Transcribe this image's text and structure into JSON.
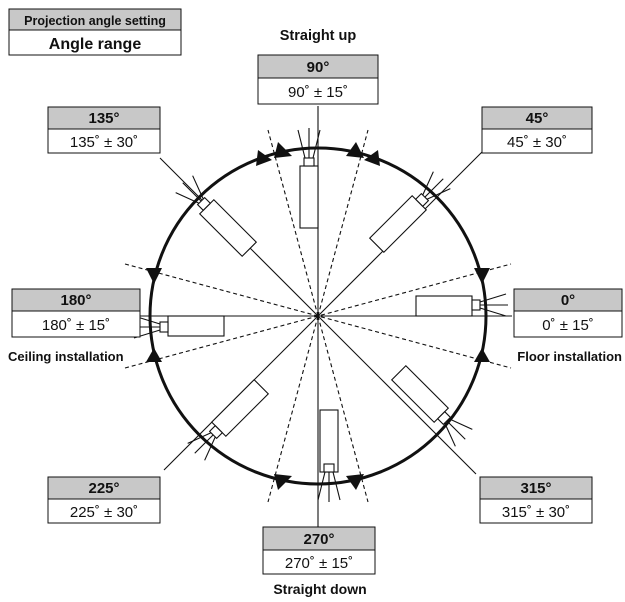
{
  "legend": {
    "heading": "Projection angle setting",
    "subheading": "Angle range"
  },
  "directions": {
    "up": "Straight up",
    "down": "Straight down",
    "ceiling": "Ceiling installation",
    "floor": "Floor installation"
  },
  "angles": [
    {
      "key": "a90",
      "angle": "90°",
      "range": "90˚ ± 15˚"
    },
    {
      "key": "a45",
      "angle": "45°",
      "range": "45˚ ± 30˚"
    },
    {
      "key": "a135",
      "angle": "135°",
      "range": "135˚ ± 30˚"
    },
    {
      "key": "a180",
      "angle": "180°",
      "range": "180˚ ± 15˚"
    },
    {
      "key": "a0",
      "angle": "0°",
      "range": "0˚ ± 15˚"
    },
    {
      "key": "a225",
      "angle": "225°",
      "range": "225˚ ± 30˚"
    },
    {
      "key": "a315",
      "angle": "315°",
      "range": "315˚ ± 30˚"
    },
    {
      "key": "a270",
      "angle": "270°",
      "range": "270˚ ± 15˚"
    }
  ],
  "colors": {
    "header_fill": "#c8c8c8",
    "line": "#111111"
  }
}
